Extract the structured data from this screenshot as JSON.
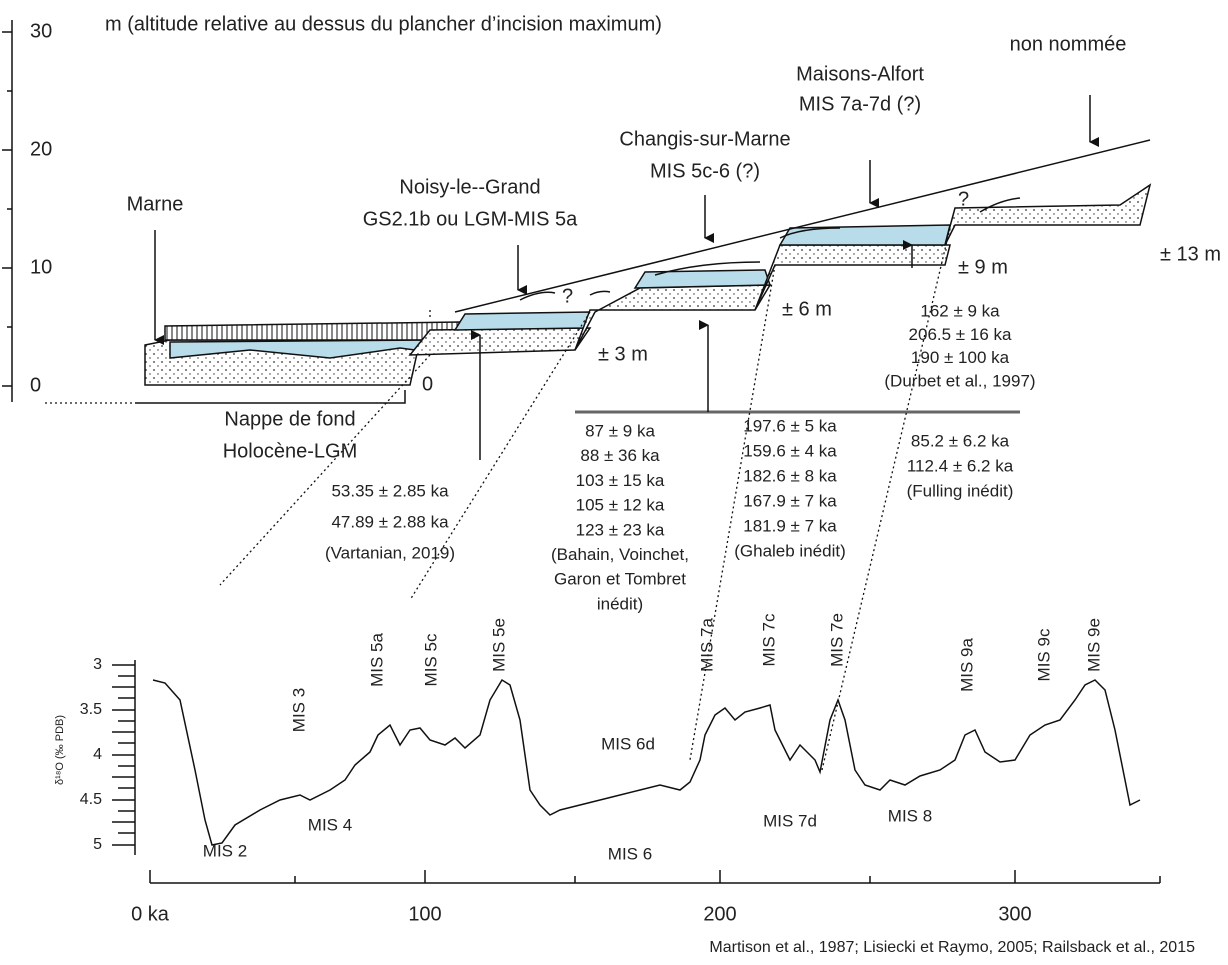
{
  "section": {
    "title": "m (altitude relative au dessus du plancher d’incision maximum)",
    "ticks": [
      "30",
      "20",
      "10",
      "0"
    ],
    "sites": [
      {
        "name": "non nommée"
      },
      {
        "name": "Maisons-Alfort",
        "period": "MIS 7a-7d (?)"
      },
      {
        "name": "Changis-sur-Marne",
        "period": "MIS 5c-6 (?)"
      },
      {
        "name": "Noisy-le--Grand",
        "period": "GS2.1b ou LGM-MIS 5a"
      },
      {
        "name": "Marne"
      }
    ],
    "heights": [
      "± 13 m",
      "± 9 m",
      "± 6 m",
      "± 3 m",
      "0"
    ],
    "uncertain": [
      "?",
      "?"
    ],
    "nappe": [
      "Nappe de fond",
      "Holocène-LGM"
    ],
    "dates": [
      [
        "53.35 ± 2.85 ka",
        "47.89 ± 2.88 ka",
        "(Vartanian, 2019)"
      ],
      [
        "87 ± 9 ka",
        "88 ± 36 ka",
        "103 ± 15 ka",
        "105 ± 12 ka",
        "123 ± 23 ka",
        "(Bahain, Voinchet,",
        "Garon et Tombret",
        "inédit)"
      ],
      [
        "197.6 ± 5 ka",
        "159.6 ± 4 ka",
        "182.6 ± 8 ka",
        "167.9 ± 7 ka",
        "181.9 ± 7 ka",
        "(Ghaleb inédit)"
      ],
      [
        "85.2 ± 6.2 ka",
        "112.4 ± 6.2 ka",
        "(Fulling inédit)"
      ],
      [
        "162 ± 9 ka",
        "206.5 ± 16 ka",
        "190 ± 100 ka",
        "(Durbet et al., 1997)"
      ]
    ]
  },
  "curve": {
    "axis_label": "δ¹⁸O (‰ PDB)",
    "yticks": [
      "3",
      "3.5",
      "4",
      "4.5",
      "5"
    ],
    "xticks": [
      "0 ka",
      "100",
      "200",
      "300"
    ],
    "stages_rotated": [
      "MIS 3",
      "MIS 5a",
      "MIS 5c",
      "MIS 5e",
      "MIS 7a",
      "MIS 7c",
      "MIS 7e",
      "MIS 9a",
      "MIS 9c",
      "MIS 9e"
    ],
    "stages": [
      "MIS 2",
      "MIS 4",
      "MIS 6d",
      "MIS 6",
      "MIS 7d",
      "MIS 8"
    ],
    "source": "Martison et al., 1987; Lisiecki et Raymo, 2005; Railsback et al., 2015"
  }
}
